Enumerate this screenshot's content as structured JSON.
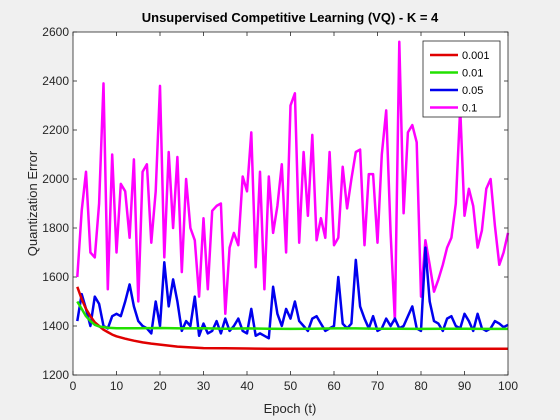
{
  "chart_data": {
    "type": "line",
    "title": "Unsupervised Competitive Learning (VQ) - K = 4",
    "xlabel": "Epoch (t)",
    "ylabel": "Quantization Error",
    "xlim": [
      0,
      100
    ],
    "ylim": [
      1200,
      2600
    ],
    "xticks": [
      0,
      10,
      20,
      30,
      40,
      50,
      60,
      70,
      80,
      90,
      100
    ],
    "yticks": [
      1200,
      1400,
      1600,
      1800,
      2000,
      2200,
      2400,
      2600
    ],
    "grid": false,
    "legend_position": "top-right",
    "series": [
      {
        "name": "0.001",
        "color": "#e00000",
        "x": [
          1,
          2,
          3,
          4,
          5,
          6,
          7,
          8,
          9,
          10,
          12,
          14,
          16,
          18,
          20,
          22,
          24,
          26,
          28,
          30,
          35,
          40,
          45,
          50,
          60,
          70,
          80,
          90,
          100
        ],
        "y": [
          1560,
          1510,
          1470,
          1440,
          1415,
          1400,
          1385,
          1375,
          1365,
          1358,
          1348,
          1340,
          1333,
          1328,
          1324,
          1320,
          1316,
          1314,
          1312,
          1310,
          1309,
          1308,
          1307,
          1307,
          1307,
          1307,
          1307,
          1307,
          1307
        ]
      },
      {
        "name": "0.01",
        "color": "#22e000",
        "x": [
          1,
          2,
          3,
          4,
          5,
          6,
          8,
          10,
          15,
          20,
          25,
          30,
          35,
          40,
          45,
          50,
          55,
          60,
          65,
          70,
          75,
          80,
          85,
          90,
          95,
          100
        ],
        "y": [
          1500,
          1470,
          1440,
          1420,
          1405,
          1398,
          1393,
          1391,
          1391,
          1392,
          1390,
          1391,
          1389,
          1390,
          1389,
          1388,
          1389,
          1390,
          1390,
          1389,
          1389,
          1388,
          1389,
          1389,
          1388,
          1388
        ]
      },
      {
        "name": "0.05",
        "color": "#0000ee",
        "x": [
          1,
          2,
          3,
          4,
          5,
          6,
          7,
          8,
          9,
          10,
          11,
          12,
          13,
          14,
          15,
          16,
          17,
          18,
          19,
          20,
          21,
          22,
          23,
          24,
          25,
          26,
          27,
          28,
          29,
          30,
          31,
          32,
          33,
          34,
          35,
          36,
          37,
          38,
          39,
          40,
          41,
          42,
          43,
          44,
          45,
          46,
          47,
          48,
          49,
          50,
          51,
          52,
          53,
          54,
          55,
          56,
          57,
          58,
          59,
          60,
          61,
          62,
          63,
          64,
          65,
          66,
          67,
          68,
          69,
          70,
          71,
          72,
          73,
          74,
          75,
          76,
          77,
          78,
          79,
          80,
          81,
          82,
          83,
          84,
          85,
          86,
          87,
          88,
          89,
          90,
          91,
          92,
          93,
          94,
          95,
          96,
          97,
          98,
          99,
          100
        ],
        "y": [
          1420,
          1530,
          1470,
          1400,
          1520,
          1490,
          1400,
          1390,
          1440,
          1450,
          1440,
          1500,
          1570,
          1480,
          1420,
          1400,
          1390,
          1370,
          1500,
          1400,
          1660,
          1480,
          1590,
          1500,
          1380,
          1420,
          1400,
          1520,
          1360,
          1410,
          1370,
          1380,
          1420,
          1370,
          1430,
          1380,
          1400,
          1430,
          1380,
          1370,
          1470,
          1360,
          1370,
          1360,
          1350,
          1560,
          1450,
          1400,
          1470,
          1430,
          1500,
          1420,
          1400,
          1380,
          1430,
          1440,
          1410,
          1380,
          1390,
          1400,
          1600,
          1410,
          1390,
          1410,
          1670,
          1480,
          1430,
          1390,
          1440,
          1380,
          1390,
          1430,
          1400,
          1430,
          1390,
          1400,
          1440,
          1480,
          1390,
          1380,
          1720,
          1500,
          1420,
          1410,
          1380,
          1430,
          1440,
          1400,
          1390,
          1450,
          1420,
          1380,
          1450,
          1390,
          1380,
          1390,
          1420,
          1410,
          1395,
          1405
        ]
      },
      {
        "name": "0.1",
        "color": "#ff00ff",
        "x": [
          1,
          2,
          3,
          4,
          5,
          6,
          7,
          8,
          9,
          10,
          11,
          12,
          13,
          14,
          15,
          16,
          17,
          18,
          19,
          20,
          21,
          22,
          23,
          24,
          25,
          26,
          27,
          28,
          29,
          30,
          31,
          32,
          33,
          34,
          35,
          36,
          37,
          38,
          39,
          40,
          41,
          42,
          43,
          44,
          45,
          46,
          47,
          48,
          49,
          50,
          51,
          52,
          53,
          54,
          55,
          56,
          57,
          58,
          59,
          60,
          61,
          62,
          63,
          64,
          65,
          66,
          67,
          68,
          69,
          70,
          71,
          72,
          73,
          74,
          75,
          76,
          77,
          78,
          79,
          80,
          81,
          82,
          83,
          84,
          85,
          86,
          87,
          88,
          89,
          90,
          91,
          92,
          93,
          94,
          95,
          96,
          97,
          98,
          99,
          100
        ],
        "y": [
          1600,
          1870,
          2030,
          1700,
          1680,
          1900,
          2390,
          1550,
          2100,
          1700,
          1980,
          1950,
          1760,
          2080,
          1500,
          2030,
          2060,
          1740,
          1950,
          2380,
          1680,
          2110,
          1800,
          2090,
          1620,
          2000,
          1800,
          1750,
          1520,
          1840,
          1550,
          1870,
          1890,
          1900,
          1450,
          1720,
          1780,
          1730,
          2010,
          1950,
          2190,
          1640,
          2030,
          1550,
          2010,
          1780,
          1890,
          2060,
          1700,
          2300,
          2350,
          1740,
          2110,
          1850,
          2180,
          1750,
          1840,
          1760,
          2110,
          1730,
          1760,
          2050,
          1880,
          2000,
          2110,
          2120,
          1730,
          2020,
          2020,
          1740,
          2100,
          2280,
          1780,
          1420,
          2560,
          1860,
          2190,
          2220,
          2150,
          1520,
          1750,
          1650,
          1540,
          1590,
          1650,
          1720,
          1760,
          1900,
          2290,
          1850,
          1960,
          1890,
          1720,
          1790,
          1960,
          2000,
          1810,
          1650,
          1700,
          1780
        ]
      }
    ]
  }
}
